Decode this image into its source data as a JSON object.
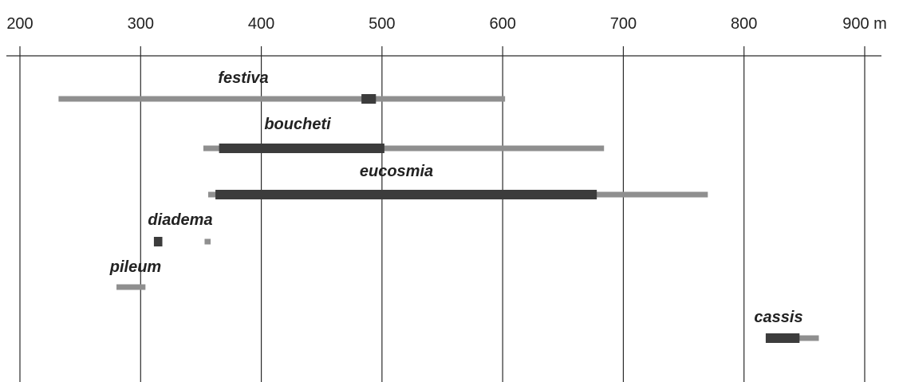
{
  "chart_data": {
    "type": "range-bar",
    "title": "",
    "xlabel": "",
    "ylabel": "",
    "unit": "m",
    "xlim": [
      200,
      900
    ],
    "x_ticks": [
      200,
      300,
      400,
      500,
      600,
      700,
      800,
      900
    ],
    "x_tick_labels": [
      "200",
      "300",
      "400",
      "500",
      "600",
      "700",
      "800",
      "900 m"
    ],
    "grid": true,
    "colors": {
      "light": "#8f8f8f",
      "dark": "#3c3c3c",
      "grid": "#2a2a2a"
    },
    "series": [
      {
        "name": "festiva",
        "total": [
          232,
          602
        ],
        "core": [
          483,
          495
        ]
      },
      {
        "name": "boucheti",
        "total": [
          352,
          684
        ],
        "core": [
          365,
          502
        ]
      },
      {
        "name": "eucosmia",
        "total": [
          356,
          770
        ],
        "core": [
          362,
          678
        ]
      },
      {
        "name": "diadema",
        "total": [
          353,
          358
        ],
        "core": [
          311,
          318
        ]
      },
      {
        "name": "pileum",
        "total": [
          280,
          304
        ],
        "core": null
      },
      {
        "name": "cassis",
        "total": [
          818,
          862
        ],
        "core": [
          818,
          846
        ]
      }
    ]
  }
}
